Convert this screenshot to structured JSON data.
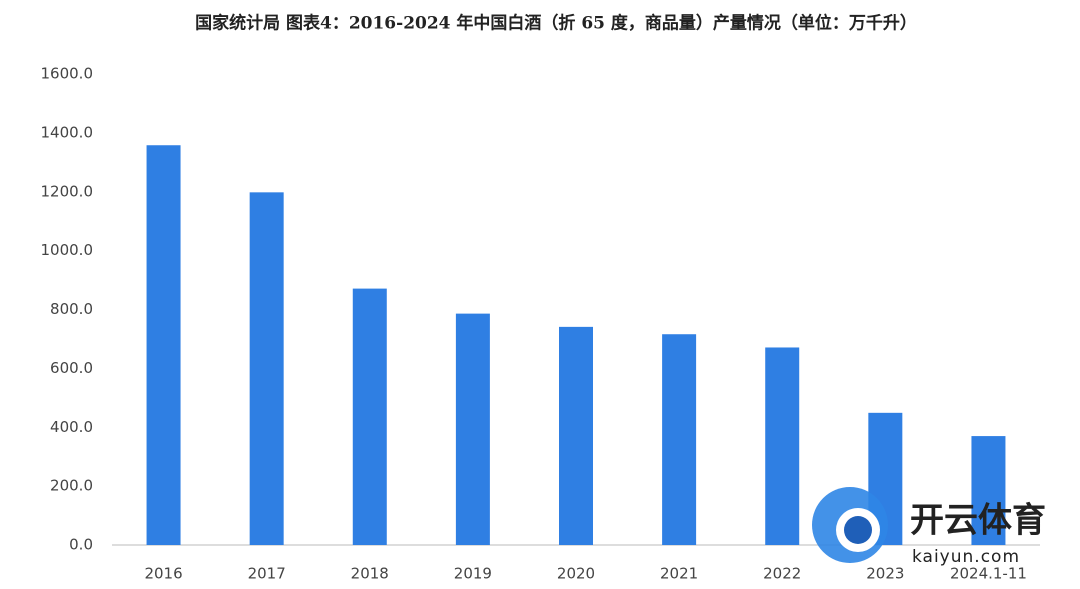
{
  "chart_data": {
    "type": "bar",
    "title": "国家统计局 图表4：2016-2024 年中国白酒（折 65 度，商品量）产量情况（单位：万千升）",
    "categories": [
      "2016",
      "2017",
      "2018",
      "2019",
      "2020",
      "2021",
      "2022",
      "2023",
      "2024.1-11"
    ],
    "values": [
      1358,
      1198,
      871,
      786,
      741,
      716,
      671,
      449,
      370
    ],
    "color": "#2f7fe3",
    "ylim": [
      0,
      1600
    ],
    "yticks": [
      {
        "value": 0,
        "label": "0.0"
      },
      {
        "value": 200,
        "label": "200.0"
      },
      {
        "value": 400,
        "label": "400.0"
      },
      {
        "value": 600,
        "label": "600.0"
      },
      {
        "value": 800,
        "label": "800.0"
      },
      {
        "value": 1000,
        "label": "1000.0"
      },
      {
        "value": 1200,
        "label": "1200.0"
      },
      {
        "value": 1400,
        "label": "1400.0"
      },
      {
        "value": 1600,
        "label": "1600.0"
      }
    ],
    "grid": false
  },
  "watermark": {
    "title": "开云体育",
    "url": "kaiyun.com"
  }
}
